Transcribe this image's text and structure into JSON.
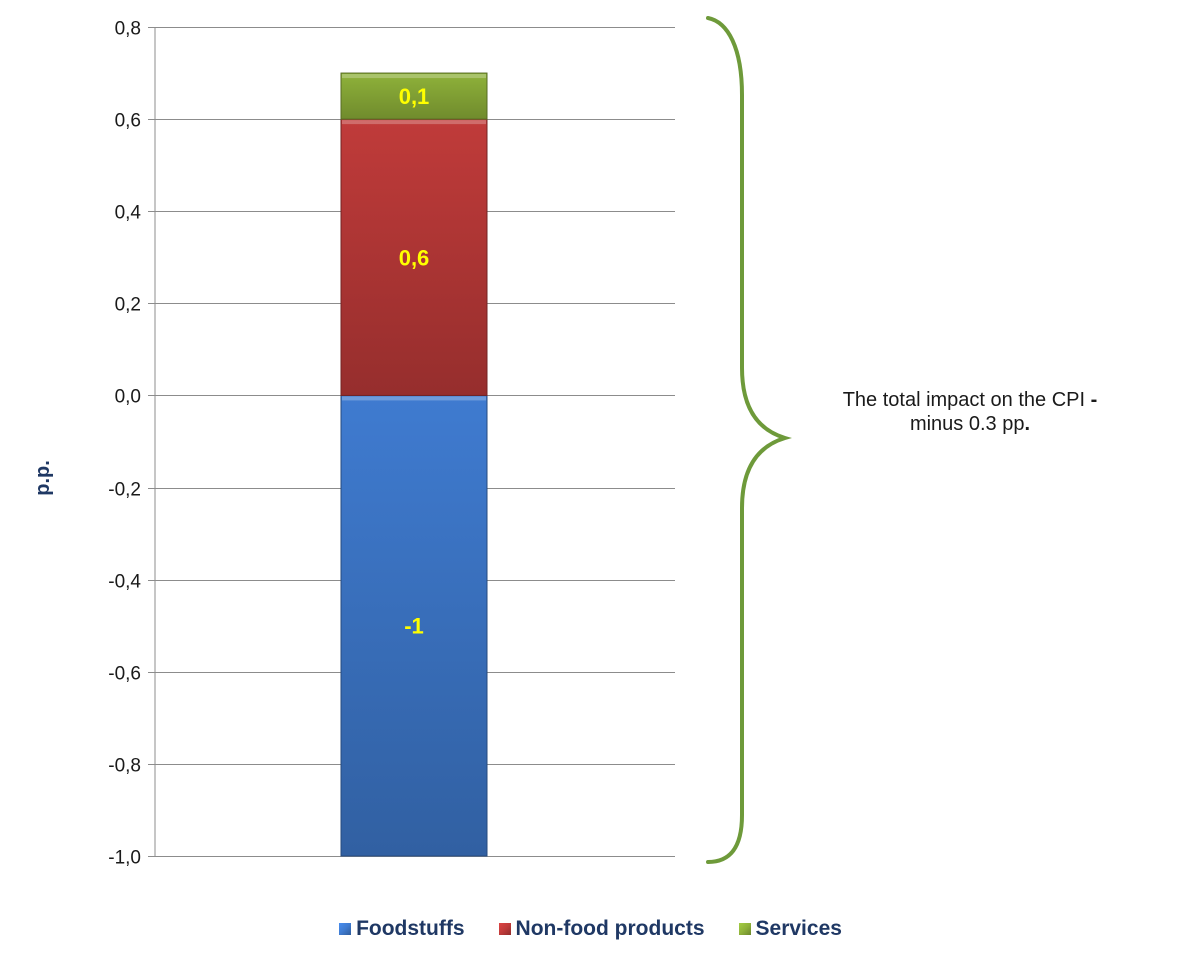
{
  "chart_data": {
    "type": "bar",
    "stacked": true,
    "categories": [
      ""
    ],
    "series": [
      {
        "name": "Foodstuffs",
        "values": [
          -1
        ],
        "label": "-1",
        "color": "#3f7bd0"
      },
      {
        "name": "Non-food products",
        "values": [
          0.6
        ],
        "label": "0,6",
        "color": "#c03b3a"
      },
      {
        "name": "Services",
        "values": [
          0.1
        ],
        "label": "0,1",
        "color": "#8fb23a"
      }
    ],
    "ylabel": "p.p.",
    "ylim": [
      -1.0,
      0.8
    ],
    "yticks": [
      {
        "value": 0.8,
        "label": "0,8"
      },
      {
        "value": 0.6,
        "label": "0,6"
      },
      {
        "value": 0.4,
        "label": "0,4"
      },
      {
        "value": 0.2,
        "label": "0,2"
      },
      {
        "value": 0.0,
        "label": "0,0"
      },
      {
        "value": -0.2,
        "label": "-0,2"
      },
      {
        "value": -0.4,
        "label": "-0,4"
      },
      {
        "value": -0.6,
        "label": "-0,6"
      },
      {
        "value": -0.8,
        "label": "-0,8"
      },
      {
        "value": -1.0,
        "label": "-1,0"
      }
    ],
    "grid": true,
    "legend_position": "bottom",
    "annotation": {
      "line1": "The total impact on the CPI",
      "dash": "-",
      "line2": "minus 0.3 pp",
      "period": "."
    },
    "brace_color": "#6e9a3a"
  }
}
